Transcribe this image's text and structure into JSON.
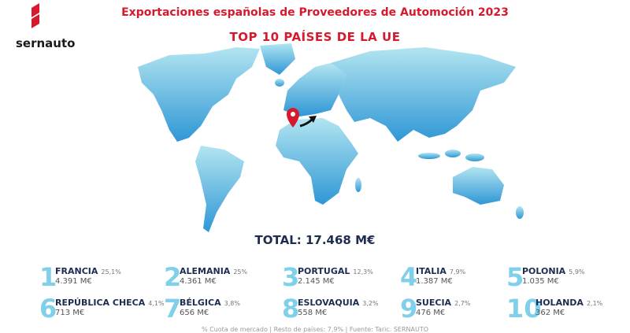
{
  "logo": "sernauto",
  "header": {
    "title": "Exportaciones españolas de Proveedores de Automoción 2023",
    "subtitle": "TOP 10 PAÍSES DE LA UE"
  },
  "total": "TOTAL: 17.468 M€",
  "countries": [
    {
      "rank": "1",
      "name": "FRANCIA",
      "share": "25,1%",
      "value": "4.391 M€"
    },
    {
      "rank": "2",
      "name": "ALEMANIA",
      "share": "25%",
      "value": "4.361 M€"
    },
    {
      "rank": "3",
      "name": "PORTUGAL",
      "share": "12,3%",
      "value": "2.145 M€"
    },
    {
      "rank": "4",
      "name": "ITALIA",
      "share": "7,9%",
      "value": "1.387 M€"
    },
    {
      "rank": "5",
      "name": "POLONIA",
      "share": "5,9%",
      "value": "1.035 M€"
    },
    {
      "rank": "6",
      "name": "REPÚBLICA CHECA",
      "share": "4,1%",
      "value": "713 M€"
    },
    {
      "rank": "7",
      "name": "BÉLGICA",
      "share": "3,8%",
      "value": "656 M€"
    },
    {
      "rank": "8",
      "name": "ESLOVAQUIA",
      "share": "3,2%",
      "value": "558 M€"
    },
    {
      "rank": "9",
      "name": "SUECIA",
      "share": "2,7%",
      "value": "476 M€"
    },
    {
      "rank": "10",
      "name": "HOLANDA",
      "share": "2,1%",
      "value": "362 M€"
    }
  ],
  "footer": "% Cuota de mercado | Resto de países: 7,9% | Fuente: Taric. SERNAUTO"
}
